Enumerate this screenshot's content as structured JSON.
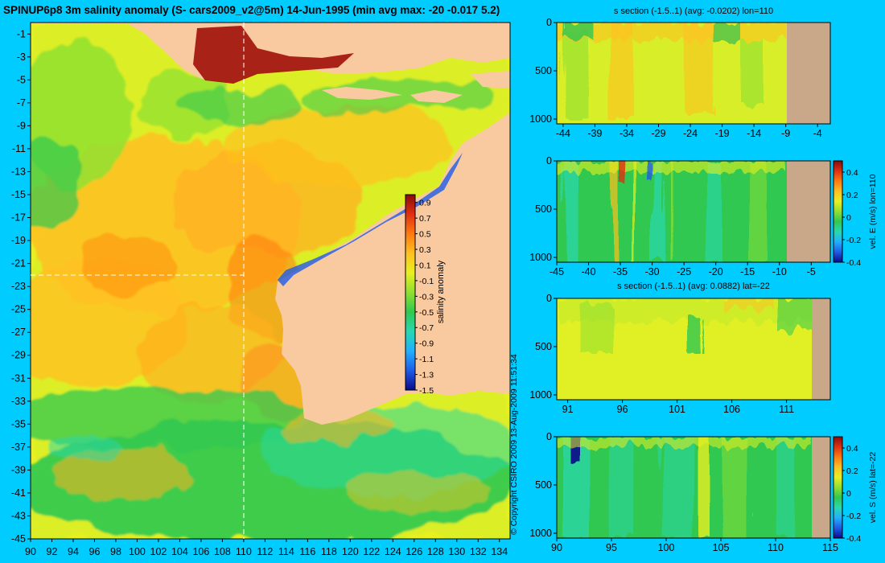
{
  "figure": {
    "title": "SPINUP6p8 3m salinity anomaly (S- cars2009_v2@5m) 14-Jun-1995 (min avg max: -20 -0.017 5.2)",
    "copyright": "© Copyright CSIRO 2009   13-Aug-2009 11:51:34"
  },
  "colors": {
    "background": "#00ccff",
    "land": "#f9c99f",
    "section_land": "#c8a888",
    "colormap": [
      "#0a0a8a",
      "#1f5be8",
      "#20b0ff",
      "#28d8b0",
      "#30c850",
      "#90e030",
      "#e8f020",
      "#ffc020",
      "#ff7a10",
      "#e03010",
      "#8a0a0a"
    ]
  },
  "chart_data": [
    {
      "type": "heatmap",
      "title": "SPINUP6p8 3m salinity anomaly (S- cars2009_v2@5m) 14-Jun-1995 (min avg max: -20 -0.017 5.2)",
      "x_ticks": [
        "90",
        "92",
        "94",
        "96",
        "98",
        "100",
        "102",
        "104",
        "106",
        "108",
        "110",
        "112",
        "114",
        "116",
        "118",
        "120",
        "122",
        "124",
        "126",
        "128",
        "130",
        "132",
        "134"
      ],
      "y_ticks": [
        "-1",
        "-3",
        "-5",
        "-7",
        "-9",
        "-11",
        "-13",
        "-15",
        "-17",
        "-19",
        "-21",
        "-23",
        "-25",
        "-27",
        "-29",
        "-31",
        "-33",
        "-35",
        "-37",
        "-39",
        "-41",
        "-43",
        "-45"
      ],
      "xlim": [
        90,
        135
      ],
      "ylim": [
        -45,
        0
      ],
      "markers": {
        "lon": 110,
        "lat": -22
      },
      "colorbar": {
        "label": "salinity anomaly",
        "ticks": [
          "0.9",
          "0.7",
          "0.5",
          "0.3",
          "0.1",
          "-0.1",
          "-0.3",
          "-0.5",
          "-0.7",
          "-0.9",
          "-1.1",
          "-1.3",
          "-1.5"
        ],
        "range": [
          -1.5,
          1.0
        ]
      }
    },
    {
      "type": "heatmap",
      "title": "s section (-1.5..1) (avg: -0.0202) lon=110",
      "x_ticks": [
        "-44",
        "-39",
        "-34",
        "-29",
        "-24",
        "-19",
        "-14",
        "-9",
        "-4"
      ],
      "y_ticks": [
        "0",
        "500",
        "1000"
      ],
      "xlim": [
        -45,
        -2
      ],
      "ylim": [
        1050,
        0
      ],
      "land_from": -8.2
    },
    {
      "type": "heatmap",
      "title": "",
      "x_ticks": [
        "-45",
        "-40",
        "-35",
        "-30",
        "-25",
        "-20",
        "-15",
        "-10",
        "-5"
      ],
      "y_ticks": [
        "0",
        "500",
        "1000"
      ],
      "xlim": [
        -45,
        -2
      ],
      "ylim": [
        1050,
        0
      ],
      "land_from": -8.2,
      "colorbar": {
        "label": "vel. E (m/s) lon=110",
        "ticks": [
          "0.4",
          "0.2",
          "0",
          "-0.2",
          "-0.4"
        ],
        "range": [
          -0.4,
          0.5
        ]
      }
    },
    {
      "type": "heatmap",
      "title": "s section (-1.5..1) (avg: 0.0882) lat=-22",
      "x_ticks": [
        "91",
        "96",
        "101",
        "106",
        "111"
      ],
      "y_ticks": [
        "0",
        "500",
        "1000"
      ],
      "xlim": [
        90,
        115
      ],
      "ylim": [
        1050,
        0
      ],
      "land_from": 113.6
    },
    {
      "type": "heatmap",
      "title": "",
      "x_ticks": [
        "90",
        "95",
        "100",
        "105",
        "110",
        "115"
      ],
      "y_ticks": [
        "0",
        "500",
        "1000"
      ],
      "xlim": [
        90,
        115
      ],
      "ylim": [
        1050,
        0
      ],
      "land_from": 113.6,
      "colorbar": {
        "label": "vel. S (m/s) lat=-22",
        "ticks": [
          "0.4",
          "0.2",
          "0",
          "-0.2",
          "-0.4"
        ],
        "range": [
          -0.4,
          0.5
        ]
      }
    }
  ]
}
